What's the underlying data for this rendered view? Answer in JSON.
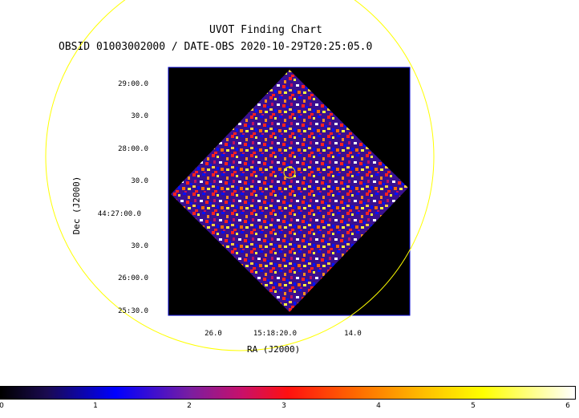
{
  "chart": {
    "title": "UVOT Finding Chart",
    "subtitle": "OBSID 01003002000 / DATE-OBS 2020-10-29T20:25:05.0",
    "xlabel": "RA (J2000)",
    "ylabel": "Dec (J2000)",
    "dec_ticks": [
      "29:00.0",
      "30.0",
      "28:00.0",
      "30.0",
      "44:27:00.0",
      "30.0",
      "26:00.0",
      "25:30.0"
    ],
    "ra_ticks": [
      "26.0",
      "15:18:20.0",
      "14.0"
    ],
    "colorbar_ticks": [
      "0",
      "1",
      "2",
      "3",
      "4",
      "5",
      "6"
    ]
  },
  "colors": {
    "background_image": "#000000",
    "frame": "#0000cc",
    "circle": "#ffff00",
    "marker": "#ffff00"
  }
}
